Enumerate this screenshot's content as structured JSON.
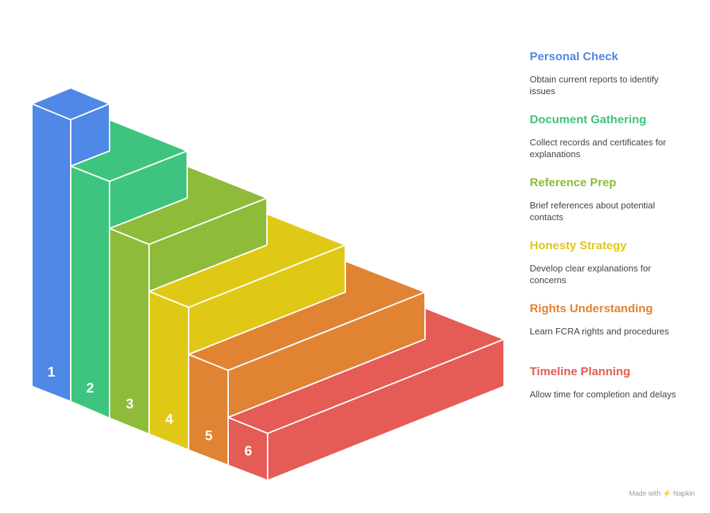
{
  "steps": [
    {
      "number": "1",
      "title": "Personal Check",
      "description": "Obtain current reports to identify issues",
      "color": "#4f88e6",
      "top_color": "#4f88e6"
    },
    {
      "number": "2",
      "title": "Document Gathering",
      "description": "Collect records and certificates for explanations",
      "color": "#3ec47e",
      "top_color": "#3ec47e"
    },
    {
      "number": "3",
      "title": "Reference Prep",
      "description": "Brief references about potential contacts",
      "color": "#8fbb3b",
      "top_color": "#8fbb3b"
    },
    {
      "number": "4",
      "title": "Honesty Strategy",
      "description": "Develop clear explanations for concerns",
      "color": "#e0c916",
      "top_color": "#e0c916"
    },
    {
      "number": "5",
      "title": "Rights Understanding",
      "description": "Learn FCRA rights and procedures",
      "color": "#e08433",
      "top_color": "#e08433"
    },
    {
      "number": "6",
      "title": "Timeline Planning",
      "description": "Allow time for completion and delays",
      "color": "#e55b56",
      "top_color": "#e55b56"
    }
  ],
  "footer": {
    "credit": "Made with ⚡ Napkin"
  }
}
